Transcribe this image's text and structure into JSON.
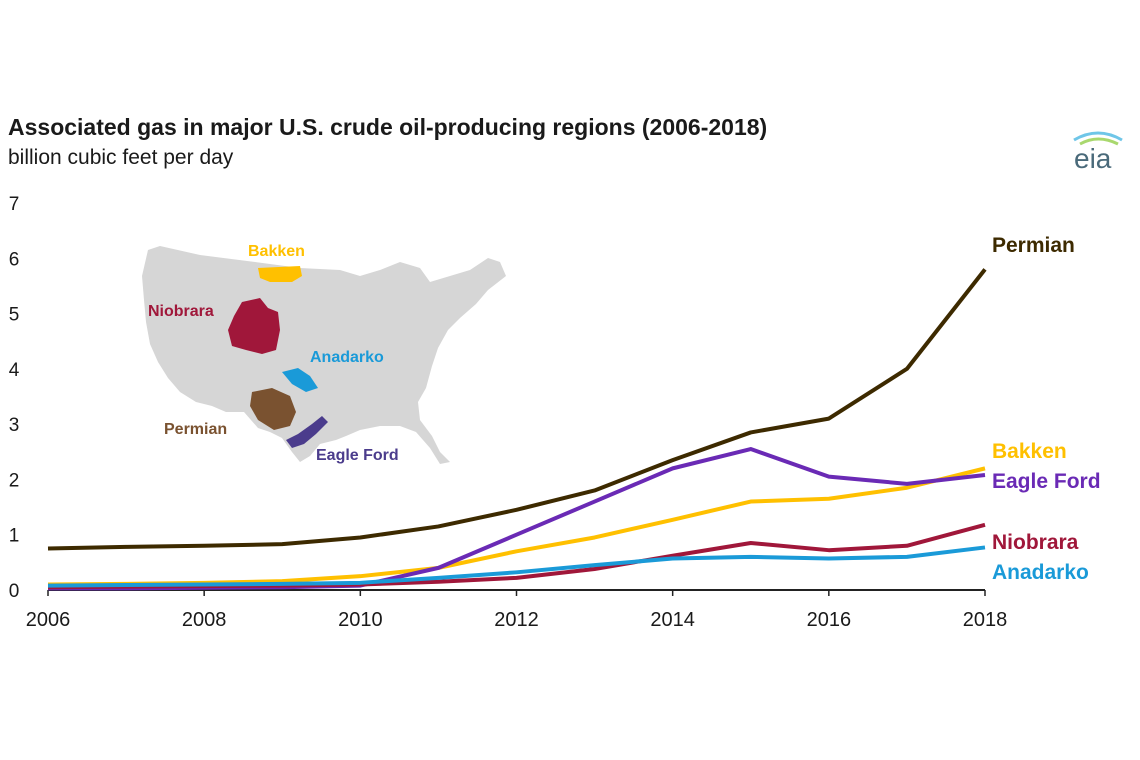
{
  "header": {
    "title": "Associated gas in major U.S. crude oil-producing regions (2006-2018)",
    "subtitle": "billion cubic feet per day",
    "logo_text": "eia"
  },
  "colors": {
    "Permian": "#3d2a00",
    "Bakken": "#ffc000",
    "Eagle Ford": "#6a2ab5",
    "Niobrara": "#a0173a",
    "Anadarko": "#1a9ad8",
    "Permian_map": "#7a5230",
    "Eagle_Ford_map": "#4b3c8c",
    "map_fill": "#d6d6d6",
    "axis": "#222222",
    "text": "#1a1a1a"
  },
  "map_labels": {
    "bakken": "Bakken",
    "niobrara": "Niobrara",
    "anadarko": "Anadarko",
    "permian": "Permian",
    "eagle_ford": "Eagle Ford"
  },
  "chart_data": {
    "type": "line",
    "title": "Associated gas in major U.S. crude oil-producing regions (2006-2018)",
    "ylabel": "billion cubic feet per day",
    "xlabel": "",
    "x": [
      2006,
      2007,
      2008,
      2009,
      2010,
      2011,
      2012,
      2013,
      2014,
      2015,
      2016,
      2017,
      2018
    ],
    "xlim": [
      2006,
      2018
    ],
    "ylim": [
      0,
      7
    ],
    "xticks": [
      "2006",
      "2008",
      "2010",
      "2012",
      "2014",
      "2016",
      "2018"
    ],
    "yticks": [
      "0",
      "1",
      "2",
      "3",
      "4",
      "5",
      "6",
      "7"
    ],
    "grid": false,
    "legend": "direct labels at right end of lines",
    "series": [
      {
        "name": "Permian",
        "values": [
          0.75,
          0.78,
          0.8,
          0.83,
          0.95,
          1.15,
          1.45,
          1.8,
          2.35,
          2.85,
          3.1,
          4.0,
          5.8
        ]
      },
      {
        "name": "Bakken",
        "values": [
          0.1,
          0.11,
          0.13,
          0.16,
          0.25,
          0.4,
          0.7,
          0.95,
          1.27,
          1.6,
          1.65,
          1.85,
          2.2
        ]
      },
      {
        "name": "Eagle Ford",
        "values": [
          0.03,
          0.03,
          0.04,
          0.05,
          0.08,
          0.4,
          1.0,
          1.6,
          2.2,
          2.55,
          2.05,
          1.92,
          2.08
        ]
      },
      {
        "name": "Niobrara",
        "values": [
          0.05,
          0.06,
          0.07,
          0.08,
          0.1,
          0.15,
          0.22,
          0.38,
          0.62,
          0.85,
          0.72,
          0.8,
          1.18
        ]
      },
      {
        "name": "Anadarko",
        "values": [
          0.08,
          0.09,
          0.1,
          0.11,
          0.13,
          0.22,
          0.32,
          0.45,
          0.57,
          0.6,
          0.57,
          0.6,
          0.77
        ]
      }
    ]
  }
}
